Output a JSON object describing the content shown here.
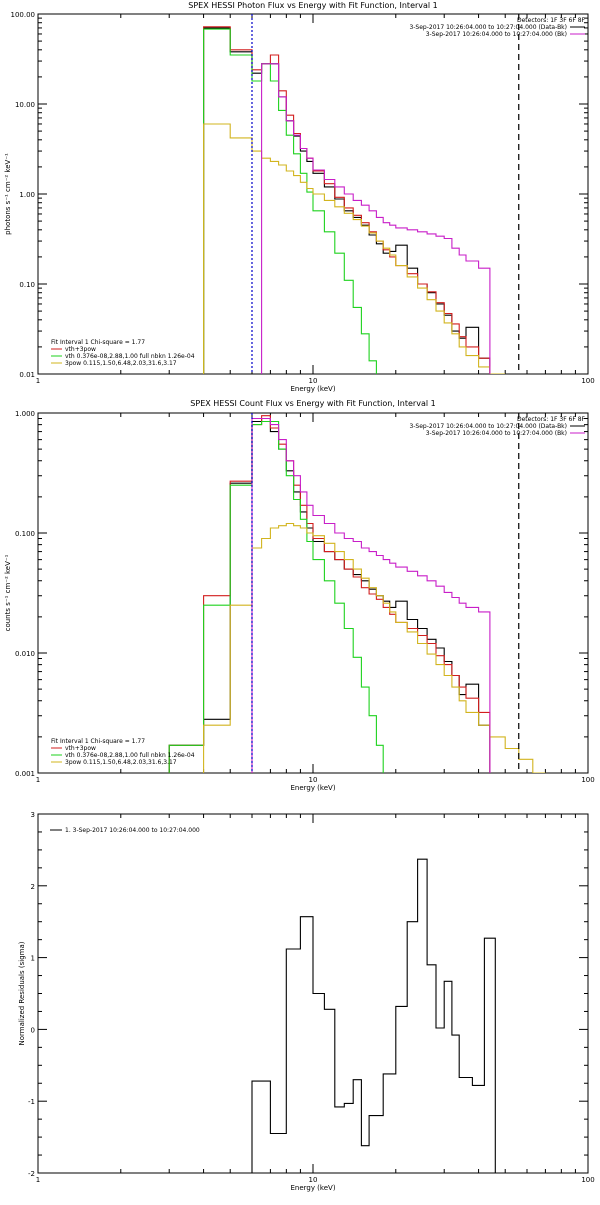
{
  "colors": {
    "black": "#000000",
    "red": "#d21e1e",
    "green": "#1ed21e",
    "gold": "#d2b41e",
    "magenta": "#c81ec8",
    "blue": "#0000c8",
    "dash": "#000000"
  },
  "chart_data": [
    {
      "type": "line",
      "title": "SPEX HESSI Photon Flux vs Energy with Fit Function, Interval 1",
      "xlabel": "Energy (keV)",
      "ylabel": "photons s⁻¹ cm⁻² keV⁻¹",
      "xscale": "log",
      "yscale": "log",
      "xlim": [
        1,
        100
      ],
      "ylim": [
        0.01,
        100
      ],
      "xticks": [
        {
          "v": 1,
          "t": "1"
        },
        {
          "v": 10,
          "t": "10"
        },
        {
          "v": 100,
          "t": "100"
        }
      ],
      "yticks": [
        {
          "v": 0.01,
          "t": "0.01"
        },
        {
          "v": 0.1,
          "t": "0.10"
        },
        {
          "v": 1,
          "t": "1.00"
        },
        {
          "v": 10,
          "t": "10.00"
        },
        {
          "v": 100,
          "t": "100.00"
        }
      ],
      "edges": [
        3,
        4,
        5,
        6,
        6.5,
        7,
        7.5,
        8,
        8.5,
        9,
        9.5,
        10,
        11,
        12,
        13,
        14,
        15,
        16,
        17,
        18,
        19,
        20,
        22,
        24,
        26,
        28,
        30,
        32,
        34,
        36,
        40,
        44,
        50,
        56,
        63,
        70,
        80
      ],
      "vlines": [
        {
          "x": 6,
          "color": "blue",
          "dash": "2,2"
        },
        {
          "x": 56,
          "color": "dash",
          "dash": "6,4"
        }
      ],
      "header": {
        "detectors": "Detectors: 1F 3F 6F 8F",
        "lines": [
          {
            "text": "3-Sep-2017 10:26:04.000 to 10:27:04.000 (Data-Bk)",
            "color": "black"
          },
          {
            "text": "3-Sep-2017 10:26:04.000 to 10:27:04.000 (Bk)",
            "color": "magenta"
          }
        ]
      },
      "legend": {
        "title": "Fit Interval 1   Chi-square = 1.77",
        "items": [
          {
            "text": "vth+3pow",
            "color": "red"
          },
          {
            "text": "vth 0.376e-08,2.88,1.00  full nbkn 1.26e-04",
            "color": "green"
          },
          {
            "text": "3pow 0.115,1.50,6.48,2.03,31.6,3.17",
            "color": "gold"
          }
        ]
      },
      "series": [
        {
          "color": "black",
          "values": [
            null,
            70,
            38,
            22,
            28,
            28,
            12,
            6.5,
            4.4,
            3.0,
            2.3,
            1.7,
            1.2,
            0.88,
            0.65,
            0.55,
            0.45,
            0.35,
            0.28,
            0.22,
            0.23,
            0.27,
            0.15,
            0.1,
            0.08,
            0.06,
            0.045,
            0.03,
            0.025,
            0.033,
            0.015,
            null,
            null,
            null,
            null,
            null
          ]
        },
        {
          "color": "red",
          "values": [
            null,
            72,
            40,
            24,
            28,
            35,
            14,
            7.5,
            4.7,
            3.2,
            2.5,
            1.8,
            1.3,
            0.92,
            0.7,
            0.58,
            0.48,
            0.38,
            0.3,
            0.24,
            0.2,
            0.16,
            0.13,
            0.1,
            0.082,
            0.062,
            0.047,
            0.036,
            0.026,
            0.02,
            0.015,
            null,
            null,
            null,
            null,
            null
          ]
        },
        {
          "color": "green",
          "values": [
            null,
            68,
            35,
            18,
            28,
            18,
            8.5,
            4.5,
            2.8,
            1.7,
            1.05,
            0.65,
            0.38,
            0.22,
            0.11,
            0.055,
            0.028,
            0.014,
            null,
            null,
            null,
            null,
            null,
            null,
            null,
            null,
            null,
            null,
            null,
            null,
            null,
            null,
            null,
            null,
            null,
            null
          ]
        },
        {
          "color": "gold",
          "values": [
            null,
            6.0,
            4.2,
            3.0,
            2.5,
            2.3,
            2.1,
            1.8,
            1.6,
            1.35,
            1.15,
            1.0,
            0.85,
            0.72,
            0.61,
            0.52,
            0.44,
            0.37,
            0.3,
            0.25,
            0.21,
            0.16,
            0.12,
            0.09,
            0.067,
            0.05,
            0.037,
            0.028,
            0.02,
            0.016,
            0.012,
            0.01,
            null,
            null,
            null,
            null
          ]
        },
        {
          "color": "magenta",
          "values": [
            null,
            null,
            null,
            null,
            28,
            28,
            12,
            6.5,
            4.5,
            3.2,
            2.5,
            1.85,
            1.45,
            1.2,
            1.0,
            0.85,
            0.75,
            0.65,
            0.55,
            0.48,
            0.45,
            0.42,
            0.4,
            0.38,
            0.36,
            0.34,
            0.32,
            0.25,
            0.21,
            0.18,
            0.15,
            null,
            null,
            null,
            null,
            null
          ]
        }
      ]
    },
    {
      "type": "line",
      "title": "SPEX HESSI Count Flux vs Energy with Fit Function, Interval 1",
      "xlabel": "Energy (keV)",
      "ylabel": "counts s⁻¹ cm⁻² keV⁻¹",
      "xscale": "log",
      "yscale": "log",
      "xlim": [
        1,
        100
      ],
      "ylim": [
        0.001,
        1
      ],
      "xticks": [
        {
          "v": 1,
          "t": "1"
        },
        {
          "v": 10,
          "t": "10"
        },
        {
          "v": 100,
          "t": "100"
        }
      ],
      "yticks": [
        {
          "v": 0.001,
          "t": "0.001"
        },
        {
          "v": 0.01,
          "t": "0.010"
        },
        {
          "v": 0.1,
          "t": "0.100"
        },
        {
          "v": 1,
          "t": "1.000"
        }
      ],
      "edges": [
        3,
        4,
        5,
        6,
        6.5,
        7,
        7.5,
        8,
        8.5,
        9,
        9.5,
        10,
        11,
        12,
        13,
        14,
        15,
        16,
        17,
        18,
        19,
        20,
        22,
        24,
        26,
        28,
        30,
        32,
        34,
        36,
        40,
        44,
        50,
        56,
        63,
        70,
        80
      ],
      "vlines": [
        {
          "x": 6,
          "color": "blue",
          "dash": "2,2"
        },
        {
          "x": 56,
          "color": "dash",
          "dash": "6,4"
        }
      ],
      "header": {
        "detectors": "Detectors: 1F 3F 6F 8F",
        "lines": [
          {
            "text": "3-Sep-2017 10:26:04.000 to 10:27:04.000 (Data-Bk)",
            "color": "black"
          },
          {
            "text": "3-Sep-2017 10:26:04.000 to 10:27:04.000 (Bk)",
            "color": "magenta"
          }
        ]
      },
      "legend": {
        "title": "Fit Interval 1   Chi-square = 1.77",
        "items": [
          {
            "text": "vth+3pow",
            "color": "red"
          },
          {
            "text": "vth 0.376e-08,2.88,1.00  full nbkn 1.26e-04",
            "color": "green"
          },
          {
            "text": "3pow 0.115,1.50,6.48,2.03,31.6,3.17",
            "color": "gold"
          }
        ]
      },
      "series": [
        {
          "color": "black",
          "values": [
            0.0017,
            0.0028,
            0.26,
            0.85,
            0.9,
            0.7,
            0.5,
            0.33,
            0.22,
            0.15,
            0.11,
            0.085,
            0.07,
            0.06,
            0.05,
            0.045,
            0.04,
            0.034,
            0.03,
            0.027,
            0.024,
            0.027,
            0.019,
            0.016,
            0.013,
            0.011,
            0.0085,
            0.0065,
            0.0045,
            0.0055,
            0.0025,
            null,
            null,
            null,
            null,
            null
          ]
        },
        {
          "color": "red",
          "values": [
            0.0017,
            0.03,
            0.27,
            0.8,
            0.95,
            0.75,
            0.55,
            0.4,
            0.25,
            0.17,
            0.12,
            0.09,
            0.07,
            0.06,
            0.05,
            0.043,
            0.035,
            0.031,
            0.028,
            0.024,
            0.021,
            0.018,
            0.016,
            0.014,
            0.012,
            0.0095,
            0.008,
            0.0065,
            0.0052,
            0.0042,
            0.0032,
            null,
            null,
            null,
            null,
            null
          ]
        },
        {
          "color": "green",
          "values": [
            0.0017,
            0.025,
            0.25,
            0.8,
            0.85,
            0.85,
            0.5,
            0.3,
            0.19,
            0.13,
            0.085,
            0.06,
            0.04,
            0.026,
            0.016,
            0.0092,
            0.0052,
            0.003,
            0.0017,
            null,
            null,
            null,
            null,
            null,
            null,
            null,
            null,
            null,
            null,
            null,
            null,
            null,
            null,
            null,
            null,
            null
          ]
        },
        {
          "color": "gold",
          "values": [
            null,
            0.0025,
            0.025,
            0.075,
            0.09,
            0.11,
            0.115,
            0.12,
            0.115,
            0.11,
            0.1,
            0.095,
            0.082,
            0.07,
            0.06,
            0.05,
            0.042,
            0.035,
            0.03,
            0.026,
            0.022,
            0.018,
            0.015,
            0.012,
            0.0098,
            0.008,
            0.0065,
            0.0052,
            0.004,
            0.0032,
            0.0025,
            0.002,
            0.0016,
            0.0013,
            0.001,
            null
          ]
        },
        {
          "color": "magenta",
          "values": [
            null,
            null,
            null,
            0.9,
            0.9,
            0.8,
            0.6,
            0.4,
            0.3,
            0.22,
            0.17,
            0.14,
            0.12,
            0.1,
            0.09,
            0.085,
            0.075,
            0.07,
            0.065,
            0.06,
            0.056,
            0.052,
            0.048,
            0.044,
            0.04,
            0.036,
            0.032,
            0.029,
            0.026,
            0.024,
            0.022,
            null,
            null,
            null,
            null,
            null
          ]
        }
      ]
    },
    {
      "type": "line",
      "title": "",
      "xlabel": "Energy (keV)",
      "ylabel": "Normalized Residuals (sigma)",
      "xscale": "log",
      "yscale": "linear",
      "xlim": [
        1,
        100
      ],
      "ylim": [
        -2,
        3
      ],
      "xticks": [
        {
          "v": 1,
          "t": "1"
        },
        {
          "v": 10,
          "t": "10"
        },
        {
          "v": 100,
          "t": "100"
        }
      ],
      "yticks": [
        {
          "v": -2,
          "t": "-2"
        },
        {
          "v": -1,
          "t": "-1"
        },
        {
          "v": 0,
          "t": "0"
        },
        {
          "v": 1,
          "t": "1"
        },
        {
          "v": 2,
          "t": "2"
        },
        {
          "v": 3,
          "t": "3"
        }
      ],
      "edges": [
        6,
        7,
        8,
        9,
        10,
        11,
        12,
        13,
        14,
        15,
        16,
        18,
        20,
        22,
        24,
        26,
        28,
        30,
        32,
        34,
        38,
        42,
        46,
        50,
        56
      ],
      "legend": {
        "title": "",
        "items": [
          {
            "text": "1.  3-Sep-2017 10:26:04.000 to 10:27:04.000",
            "color": "black"
          }
        ]
      },
      "series": [
        {
          "color": "black",
          "values": [
            -0.72,
            -1.45,
            1.12,
            1.57,
            0.5,
            0.28,
            -1.08,
            -1.03,
            -0.7,
            -1.62,
            -1.2,
            -0.62,
            0.32,
            1.5,
            2.37,
            0.9,
            0.02,
            0.67,
            -0.08,
            -0.67,
            -0.78,
            1.27,
            null,
            null
          ]
        }
      ]
    }
  ]
}
